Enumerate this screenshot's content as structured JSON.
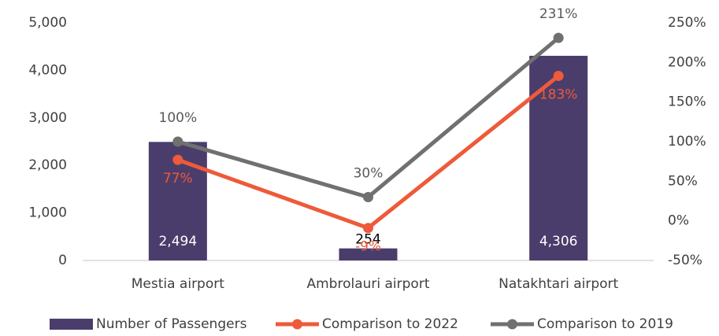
{
  "chart_data": {
    "type": "bar",
    "categories": [
      "Mestia airport",
      "Ambrolauri airport",
      "Natakhtari airport"
    ],
    "series": [
      {
        "name": "Number of Passengers",
        "type": "bar",
        "color": "#4a3d6b",
        "values": [
          2494,
          254,
          4306
        ],
        "value_labels": [
          "2,494",
          "254",
          "4,306"
        ]
      },
      {
        "name": "Comparison to 2022",
        "type": "line",
        "axis": "y2",
        "color": "#ee5a3a",
        "values": [
          77,
          -9,
          183
        ],
        "value_labels": [
          "77%",
          "-9%",
          "183%"
        ]
      },
      {
        "name": "Comparison to 2019",
        "type": "line",
        "axis": "y2",
        "color": "#707070",
        "values": [
          100,
          30,
          231
        ],
        "value_labels": [
          "100%",
          "30%",
          "231%"
        ]
      }
    ],
    "ylim": [
      0,
      5000
    ],
    "yticks": [
      0,
      {
        "value": 1000,
        "label": "1,000"
      },
      {
        "value": 2000,
        "label": "2,000"
      },
      {
        "value": 3000,
        "label": "3,000"
      },
      {
        "value": 4000,
        "label": "4,000"
      },
      {
        "value": 5000,
        "label": "5,000"
      }
    ],
    "y2lim": [
      -50,
      250
    ],
    "y2ticks": [
      {
        "value": -50,
        "label": "-50%"
      },
      {
        "value": 0,
        "label": "0%"
      },
      {
        "value": 50,
        "label": "50%"
      },
      {
        "value": 100,
        "label": "100%"
      },
      {
        "value": 150,
        "label": "150%"
      },
      {
        "value": 200,
        "label": "200%"
      },
      {
        "value": 250,
        "label": "250%"
      }
    ],
    "grid": false,
    "legend": "bottom"
  }
}
